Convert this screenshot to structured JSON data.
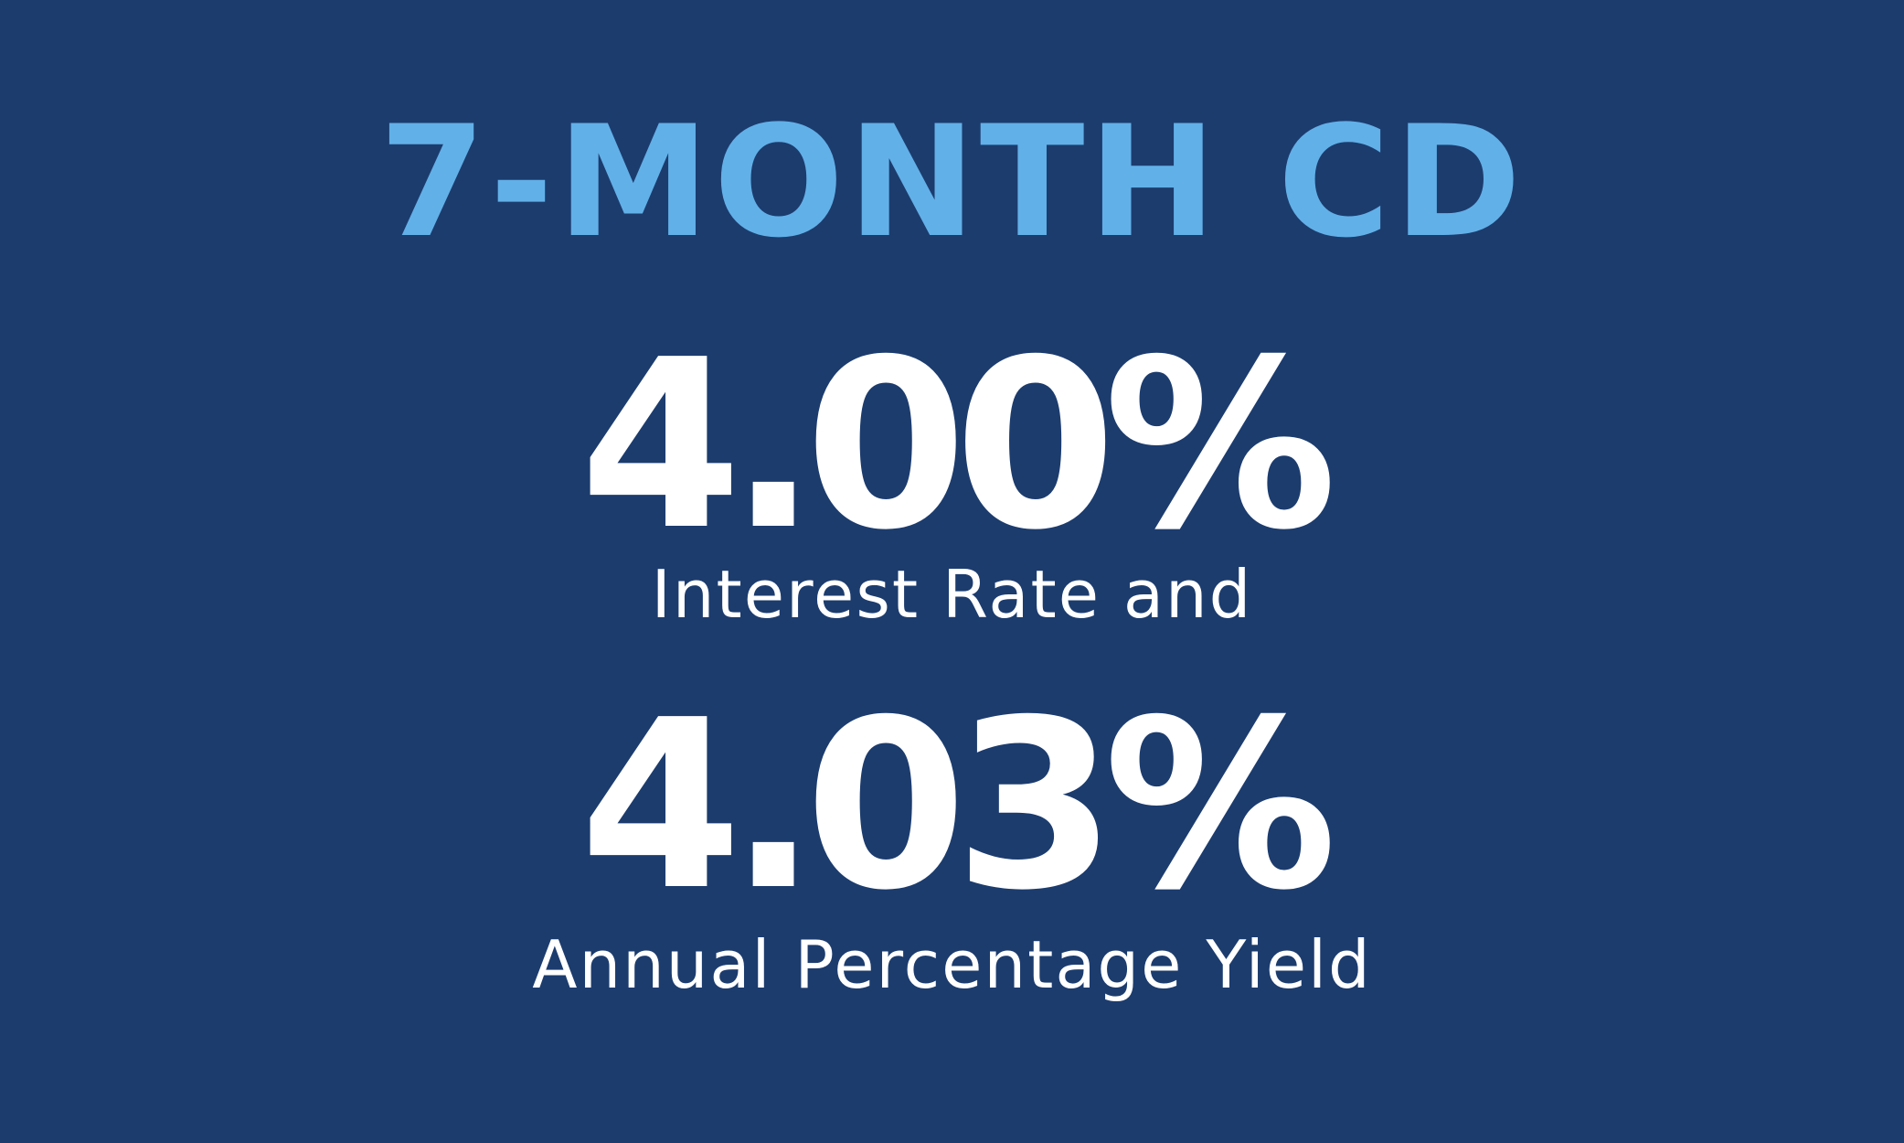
{
  "title": "7-MONTH CD",
  "interest_rate": {
    "value": "4.00%",
    "label": "Interest Rate and"
  },
  "apy": {
    "value": "4.03%",
    "label": "Annual Percentage Yield"
  },
  "colors": {
    "background": "#1c3c6e",
    "title": "#62b0e8",
    "text": "#ffffff"
  }
}
